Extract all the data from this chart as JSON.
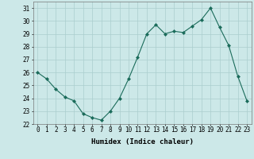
{
  "x": [
    0,
    1,
    2,
    3,
    4,
    5,
    6,
    7,
    8,
    9,
    10,
    11,
    12,
    13,
    14,
    15,
    16,
    17,
    18,
    19,
    20,
    21,
    22,
    23
  ],
  "y": [
    26.0,
    25.5,
    24.7,
    24.1,
    23.8,
    22.8,
    22.5,
    22.3,
    23.0,
    24.0,
    25.5,
    27.2,
    29.0,
    29.7,
    29.0,
    29.2,
    29.1,
    29.6,
    30.1,
    31.0,
    29.5,
    28.1,
    25.7,
    23.8
  ],
  "line_color": "#1a6b5a",
  "marker": "D",
  "marker_size": 2,
  "bg_color": "#cce8e8",
  "grid_color": "#aacece",
  "xlabel": "Humidex (Indice chaleur)",
  "ylim": [
    22,
    31.5
  ],
  "xlim": [
    -0.5,
    23.5
  ],
  "yticks": [
    22,
    23,
    24,
    25,
    26,
    27,
    28,
    29,
    30,
    31
  ],
  "xticks": [
    0,
    1,
    2,
    3,
    4,
    5,
    6,
    7,
    8,
    9,
    10,
    11,
    12,
    13,
    14,
    15,
    16,
    17,
    18,
    19,
    20,
    21,
    22,
    23
  ],
  "xlabel_fontsize": 6.5,
  "tick_fontsize": 5.5
}
